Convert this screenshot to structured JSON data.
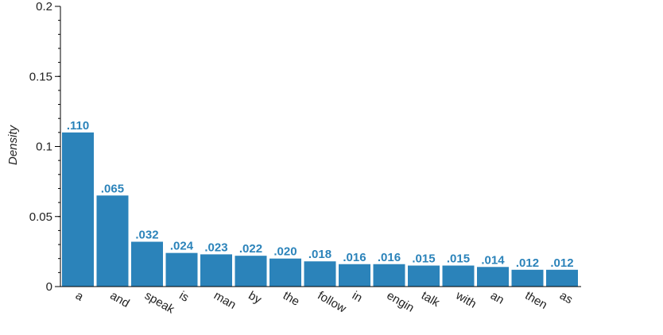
{
  "chart_data": {
    "type": "bar",
    "ylabel": "Density",
    "xlabel": "",
    "title": "",
    "ylim": [
      0,
      0.2
    ],
    "y_major_ticks": [
      0,
      0.05,
      0.1,
      0.15,
      0.2
    ],
    "y_tick_labels": [
      "0",
      "0.05",
      "0.1",
      "0.15",
      "0.2"
    ],
    "y_minor_tick_step": 0.01,
    "grid": false,
    "categories": [
      "a",
      "and",
      "speak",
      "is",
      "man",
      "by",
      "the",
      "follow",
      "in",
      "engin",
      "talk",
      "with",
      "an",
      "then",
      "as"
    ],
    "values": [
      0.11,
      0.065,
      0.032,
      0.024,
      0.023,
      0.022,
      0.02,
      0.018,
      0.016,
      0.016,
      0.015,
      0.015,
      0.014,
      0.012,
      0.012
    ],
    "value_labels": [
      ".110",
      ".065",
      ".032",
      ".024",
      ".023",
      ".022",
      ".020",
      ".018",
      ".016",
      ".016",
      ".015",
      ".015",
      ".014",
      ".012",
      ".012"
    ],
    "bar_color": "#2b83ba",
    "value_label_color": "#2b83ba",
    "axis_color": "#000000"
  }
}
